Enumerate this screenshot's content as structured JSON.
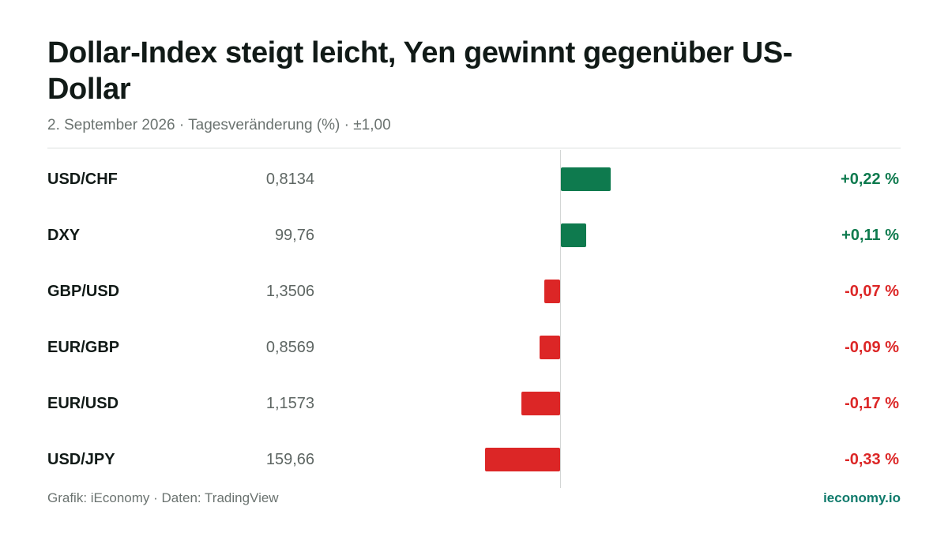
{
  "header": {
    "title": "Dollar-Index steigt leicht, Yen gewinnt gegenüber US-Dollar",
    "subtitle": "2. September 2026 · Tagesveränderung (%) · ±1,00"
  },
  "footer": {
    "source": "Grafik: iEconomy · Daten: TradingView",
    "brand": "ieconomy.io"
  },
  "colors": {
    "positive": "#0e7a4e",
    "negative": "#dc2626"
  },
  "chart_data": {
    "type": "bar",
    "orientation": "horizontal",
    "scale_note": "±1,00",
    "xlim": [
      -1.0,
      1.0
    ],
    "categories": [
      "USD/CHF",
      "DXY",
      "GBP/USD",
      "EUR/GBP",
      "EUR/USD",
      "USD/JPY"
    ],
    "prices": [
      "0,8134",
      "99,76",
      "1,3506",
      "0,8569",
      "1,1573",
      "159,66"
    ],
    "values": [
      0.22,
      0.11,
      -0.07,
      -0.09,
      -0.17,
      -0.33
    ],
    "value_labels": [
      "+0,22 %",
      "+0,11 %",
      "-0,07 %",
      "-0,09 %",
      "-0,17 %",
      "-0,33 %"
    ]
  }
}
